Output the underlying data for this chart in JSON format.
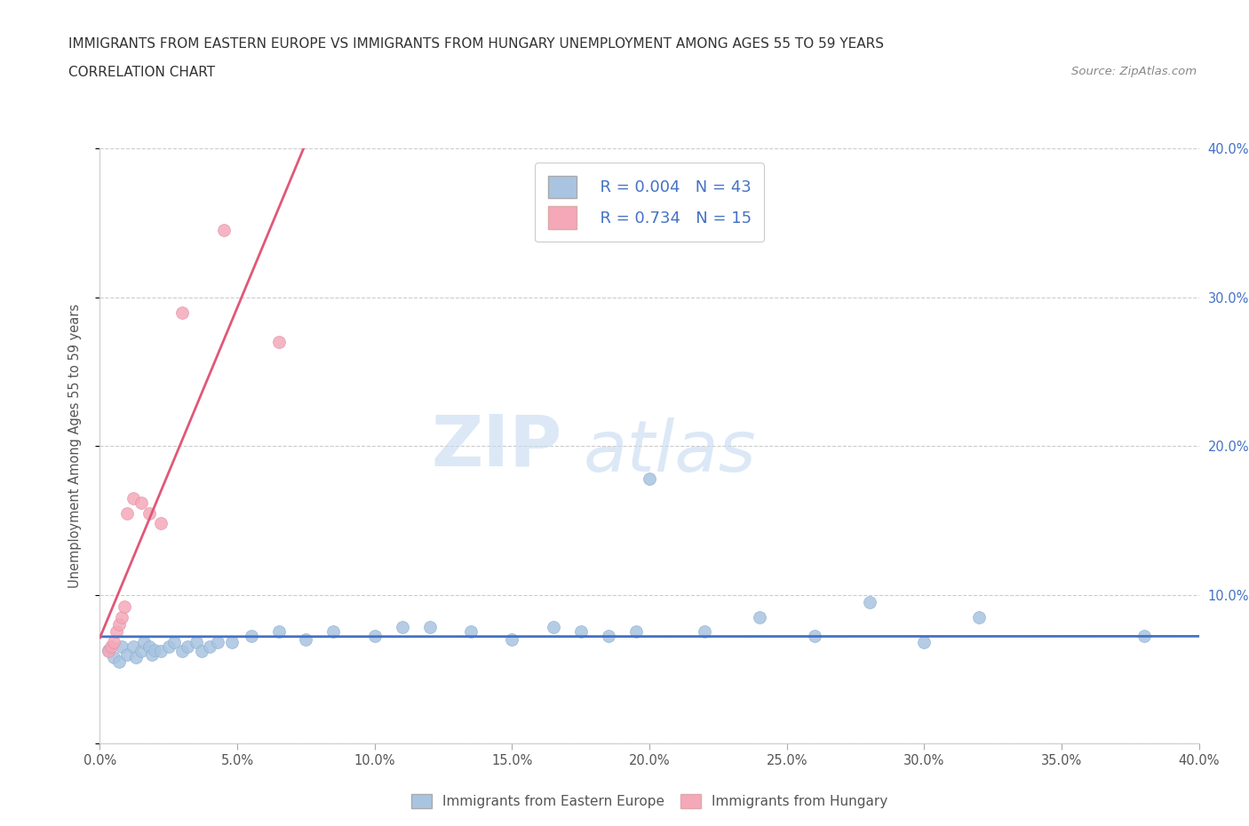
{
  "title_line1": "IMMIGRANTS FROM EASTERN EUROPE VS IMMIGRANTS FROM HUNGARY UNEMPLOYMENT AMONG AGES 55 TO 59 YEARS",
  "title_line2": "CORRELATION CHART",
  "source_text": "Source: ZipAtlas.com",
  "ylabel": "Unemployment Among Ages 55 to 59 years",
  "xlim": [
    0.0,
    0.4
  ],
  "ylim": [
    0.0,
    0.4
  ],
  "xtick_labels": [
    "0.0%",
    "",
    "5.0%",
    "",
    "10.0%",
    "",
    "15.0%",
    "",
    "20.0%",
    "",
    "25.0%",
    "",
    "30.0%",
    "",
    "35.0%",
    "",
    "40.0%"
  ],
  "xtick_vals": [
    0.0,
    0.025,
    0.05,
    0.075,
    0.1,
    0.125,
    0.15,
    0.175,
    0.2,
    0.225,
    0.25,
    0.275,
    0.3,
    0.325,
    0.35,
    0.375,
    0.4
  ],
  "ytick_labels": [
    "",
    "10.0%",
    "20.0%",
    "30.0%",
    "40.0%"
  ],
  "ytick_vals": [
    0.0,
    0.1,
    0.2,
    0.3,
    0.4
  ],
  "color_blue": "#a8c4e0",
  "color_pink": "#f4a8b8",
  "trendline_blue": "#4472c4",
  "trendline_pink": "#e05878",
  "watermark_zip": "ZIP",
  "watermark_atlas": "atlas",
  "blue_scatter_x": [
    0.003,
    0.005,
    0.007,
    0.008,
    0.01,
    0.012,
    0.013,
    0.015,
    0.016,
    0.018,
    0.019,
    0.02,
    0.022,
    0.025,
    0.027,
    0.03,
    0.032,
    0.035,
    0.037,
    0.04,
    0.043,
    0.048,
    0.055,
    0.065,
    0.075,
    0.085,
    0.1,
    0.11,
    0.12,
    0.135,
    0.15,
    0.165,
    0.175,
    0.185,
    0.195,
    0.2,
    0.22,
    0.24,
    0.26,
    0.28,
    0.3,
    0.32,
    0.38
  ],
  "blue_scatter_y": [
    0.063,
    0.058,
    0.055,
    0.065,
    0.06,
    0.065,
    0.058,
    0.062,
    0.068,
    0.065,
    0.06,
    0.063,
    0.062,
    0.065,
    0.068,
    0.062,
    0.065,
    0.068,
    0.062,
    0.065,
    0.068,
    0.068,
    0.072,
    0.075,
    0.07,
    0.075,
    0.072,
    0.078,
    0.078,
    0.075,
    0.07,
    0.078,
    0.075,
    0.072,
    0.075,
    0.178,
    0.075,
    0.085,
    0.072,
    0.095,
    0.068,
    0.085,
    0.072
  ],
  "pink_scatter_x": [
    0.003,
    0.004,
    0.005,
    0.006,
    0.007,
    0.008,
    0.009,
    0.01,
    0.012,
    0.015,
    0.018,
    0.022,
    0.03,
    0.045,
    0.065
  ],
  "pink_scatter_y": [
    0.062,
    0.065,
    0.068,
    0.075,
    0.08,
    0.085,
    0.092,
    0.155,
    0.165,
    0.162,
    0.155,
    0.148,
    0.29,
    0.345,
    0.27
  ]
}
